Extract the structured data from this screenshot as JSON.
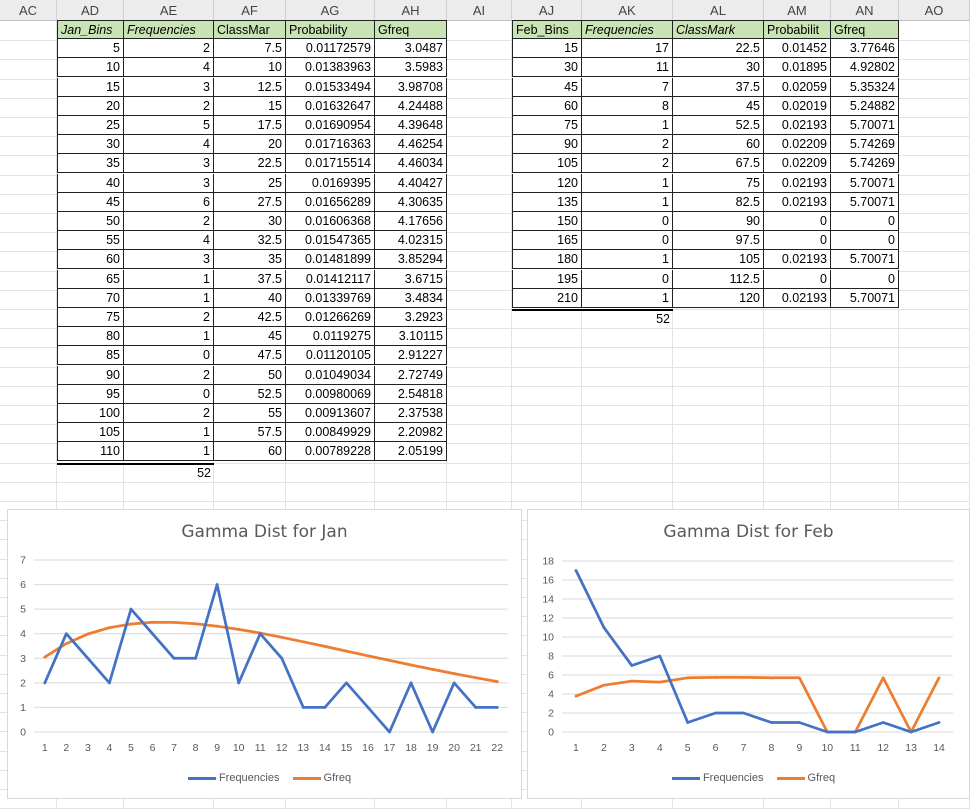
{
  "columns": [
    "AC",
    "AD",
    "AE",
    "AF",
    "AG",
    "AH",
    "AI",
    "AJ",
    "AK",
    "AL",
    "AM",
    "AN",
    "AO"
  ],
  "jan_table": {
    "headers": [
      "Jan_Bins",
      "Frequencies",
      "ClassMar",
      "Probability",
      "Gfreq"
    ],
    "rows": [
      [
        "5",
        "2",
        "7.5",
        "0.01172579",
        "3.0487"
      ],
      [
        "10",
        "4",
        "10",
        "0.01383963",
        "3.5983"
      ],
      [
        "15",
        "3",
        "12.5",
        "0.01533494",
        "3.98708"
      ],
      [
        "20",
        "2",
        "15",
        "0.01632647",
        "4.24488"
      ],
      [
        "25",
        "5",
        "17.5",
        "0.01690954",
        "4.39648"
      ],
      [
        "30",
        "4",
        "20",
        "0.01716363",
        "4.46254"
      ],
      [
        "35",
        "3",
        "22.5",
        "0.01715514",
        "4.46034"
      ],
      [
        "40",
        "3",
        "25",
        "0.0169395",
        "4.40427"
      ],
      [
        "45",
        "6",
        "27.5",
        "0.01656289",
        "4.30635"
      ],
      [
        "50",
        "2",
        "30",
        "0.01606368",
        "4.17656"
      ],
      [
        "55",
        "4",
        "32.5",
        "0.01547365",
        "4.02315"
      ],
      [
        "60",
        "3",
        "35",
        "0.01481899",
        "3.85294"
      ],
      [
        "65",
        "1",
        "37.5",
        "0.01412117",
        "3.6715"
      ],
      [
        "70",
        "1",
        "40",
        "0.01339769",
        "3.4834"
      ],
      [
        "75",
        "2",
        "42.5",
        "0.01266269",
        "3.2923"
      ],
      [
        "80",
        "1",
        "45",
        "0.0119275",
        "3.10115"
      ],
      [
        "85",
        "0",
        "47.5",
        "0.01120105",
        "2.91227"
      ],
      [
        "90",
        "2",
        "50",
        "0.01049034",
        "2.72749"
      ],
      [
        "95",
        "0",
        "52.5",
        "0.00980069",
        "2.54818"
      ],
      [
        "100",
        "2",
        "55",
        "0.00913607",
        "2.37538"
      ],
      [
        "105",
        "1",
        "57.5",
        "0.00849929",
        "2.20982"
      ],
      [
        "110",
        "1",
        "60",
        "0.00789228",
        "2.05199"
      ]
    ],
    "total": "52"
  },
  "feb_table": {
    "headers": [
      "Feb_Bins",
      "Frequencies",
      "ClassMark",
      "Probabilit",
      "Gfreq"
    ],
    "rows": [
      [
        "15",
        "17",
        "22.5",
        "0.01452",
        "3.77646"
      ],
      [
        "30",
        "11",
        "30",
        "0.01895",
        "4.92802"
      ],
      [
        "45",
        "7",
        "37.5",
        "0.02059",
        "5.35324"
      ],
      [
        "60",
        "8",
        "45",
        "0.02019",
        "5.24882"
      ],
      [
        "75",
        "1",
        "52.5",
        "0.02193",
        "5.70071"
      ],
      [
        "90",
        "2",
        "60",
        "0.02209",
        "5.74269"
      ],
      [
        "105",
        "2",
        "67.5",
        "0.02209",
        "5.74269"
      ],
      [
        "120",
        "1",
        "75",
        "0.02193",
        "5.70071"
      ],
      [
        "135",
        "1",
        "82.5",
        "0.02193",
        "5.70071"
      ],
      [
        "150",
        "0",
        "90",
        "0",
        "0"
      ],
      [
        "165",
        "0",
        "97.5",
        "0",
        "0"
      ],
      [
        "180",
        "1",
        "105",
        "0.02193",
        "5.70071"
      ],
      [
        "195",
        "0",
        "112.5",
        "0",
        "0"
      ],
      [
        "210",
        "1",
        "120",
        "0.02193",
        "5.70071"
      ]
    ],
    "total": "52"
  },
  "chart_data": [
    {
      "type": "line",
      "title": "Gamma Dist for Jan",
      "x": [
        1,
        2,
        3,
        4,
        5,
        6,
        7,
        8,
        9,
        10,
        11,
        12,
        13,
        14,
        15,
        16,
        17,
        18,
        19,
        20,
        21,
        22
      ],
      "ylim": [
        0,
        7
      ],
      "yticks": [
        0,
        1,
        2,
        3,
        4,
        5,
        6,
        7
      ],
      "series": [
        {
          "name": "Frequencies",
          "color": "#4472c4",
          "values": [
            2,
            4,
            3,
            2,
            5,
            4,
            3,
            3,
            6,
            2,
            4,
            3,
            1,
            1,
            2,
            1,
            0,
            2,
            0,
            2,
            1,
            1
          ]
        },
        {
          "name": "Gfreq",
          "color": "#ed7d31",
          "values": [
            3.0487,
            3.5983,
            3.98708,
            4.24488,
            4.39648,
            4.46254,
            4.46034,
            4.40427,
            4.30635,
            4.17656,
            4.02315,
            3.85294,
            3.6715,
            3.4834,
            3.2923,
            3.10115,
            2.91227,
            2.72749,
            2.54818,
            2.37538,
            2.20982,
            2.05199
          ]
        }
      ],
      "legend": "bottom"
    },
    {
      "type": "line",
      "title": "Gamma Dist for Feb",
      "x": [
        1,
        2,
        3,
        4,
        5,
        6,
        7,
        8,
        9,
        10,
        11,
        12,
        13,
        14
      ],
      "ylim": [
        0,
        18
      ],
      "yticks": [
        0,
        2,
        4,
        6,
        8,
        10,
        12,
        14,
        16,
        18
      ],
      "series": [
        {
          "name": "Frequencies",
          "color": "#4472c4",
          "values": [
            17,
            11,
            7,
            8,
            1,
            2,
            2,
            1,
            1,
            0,
            0,
            1,
            0,
            1
          ]
        },
        {
          "name": "Gfreq",
          "color": "#ed7d31",
          "values": [
            3.77646,
            4.92802,
            5.35324,
            5.24882,
            5.70071,
            5.74269,
            5.74269,
            5.70071,
            5.70071,
            0,
            0,
            5.70071,
            0,
            5.70071
          ]
        }
      ],
      "legend": "bottom"
    }
  ]
}
